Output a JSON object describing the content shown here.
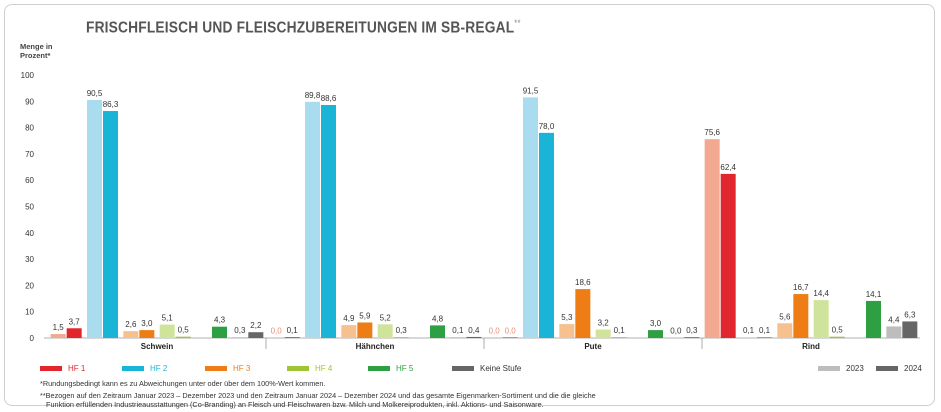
{
  "title": "FRISCHFLEISCH UND FLEISCHZUBEREITUNGEN IM SB-REGAL",
  "title_mark": "**",
  "ylabel": "Menge in\nProzent*",
  "chart_data": {
    "type": "bar",
    "categories": [
      "Schwein",
      "Hähnchen",
      "Pute",
      "Rind"
    ],
    "ylim": [
      0,
      100
    ],
    "yticks": [
      0,
      10,
      20,
      30,
      40,
      50,
      60,
      70,
      80,
      90,
      100
    ],
    "grid": false,
    "series": [
      {
        "name": "HF 1",
        "color2023": "#f2a98f",
        "color2024": "#e1262d",
        "v2023": [
          1.5,
          0.0,
          0.0,
          75.6
        ],
        "v2024": [
          3.7,
          0.1,
          0.0,
          62.4
        ]
      },
      {
        "name": "HF 2",
        "color2023": "#a9dcef",
        "color2024": "#19b4d6",
        "v2023": [
          90.5,
          89.8,
          91.5,
          0.1
        ],
        "v2024": [
          86.3,
          88.6,
          78.0,
          0.1
        ]
      },
      {
        "name": "HF 3",
        "color2023": "#f6c08f",
        "color2024": "#ee7d15",
        "v2023": [
          2.6,
          4.9,
          5.3,
          5.6
        ],
        "v2024": [
          3.0,
          5.9,
          18.6,
          16.7
        ]
      },
      {
        "name": "HF 4",
        "color2023": "#cfe39a",
        "color2024": "#9dc535",
        "v2023": [
          5.1,
          5.2,
          3.2,
          14.4
        ],
        "v2024": [
          0.5,
          0.3,
          0.1,
          0.5
        ]
      },
      {
        "name": "HF 5",
        "color2023": "#a8d9a6",
        "color2024": "#2ea043",
        "v2023": [
          null,
          null,
          null,
          null
        ],
        "v2024": [
          4.3,
          4.8,
          3.0,
          14.1
        ]
      },
      {
        "name": "Keine Stufe",
        "color2023": "#bdbdbd",
        "color2024": "#666666",
        "v2023": [
          0.3,
          0.1,
          0.0,
          4.4
        ],
        "v2024": [
          2.2,
          0.4,
          0.3,
          6.3
        ]
      }
    ],
    "labels2023": [
      [
        "1,5",
        "0,0",
        "0,0",
        "75,6"
      ],
      [
        "90,5",
        "89,8",
        "91,5",
        "0,1"
      ],
      [
        "2,6",
        "4,9",
        "5,3",
        "5,6"
      ],
      [
        "5,1",
        "5,2",
        "3,2",
        "14,4"
      ],
      [
        null,
        null,
        null,
        null
      ],
      [
        "0,3",
        "0,1",
        "0,0",
        "4,4"
      ]
    ],
    "labels2024": [
      [
        "3,7",
        "0,1",
        "0,0",
        "62,4"
      ],
      [
        "86,3",
        "88,6",
        "78,0",
        "0,1"
      ],
      [
        "3,0",
        "5,9",
        "18,6",
        "16,7"
      ],
      [
        "0,5",
        "0,3",
        "0,1",
        "0,5"
      ],
      [
        "4,3",
        "4,8",
        "3,0",
        "14,1"
      ],
      [
        "2,2",
        "0,4",
        "0,3",
        "6,3"
      ]
    ],
    "year_legend": [
      {
        "label": "2023",
        "color": "#bdbdbd"
      },
      {
        "label": "2024",
        "color": "#666666"
      }
    ]
  },
  "footnotes": {
    "f1": "*Rundungsbedingt kann es zu Abweichungen unter oder über dem 100%-Wert kommen.",
    "f2": "**Bezogen auf den Zeitraum Januar 2023 – Dezember 2023 und den Zeitraum Januar 2024 – Dezember 2024 und das gesamte Eigenmarken-Sortiment und die die gleiche",
    "f3": "Funktion erfüllenden Industrieausstattungen (Co-Branding) an Fleisch und Fleischwaren bzw. Milch und Molkereiprodukten, inkl. Aktions- und Saisonware."
  }
}
